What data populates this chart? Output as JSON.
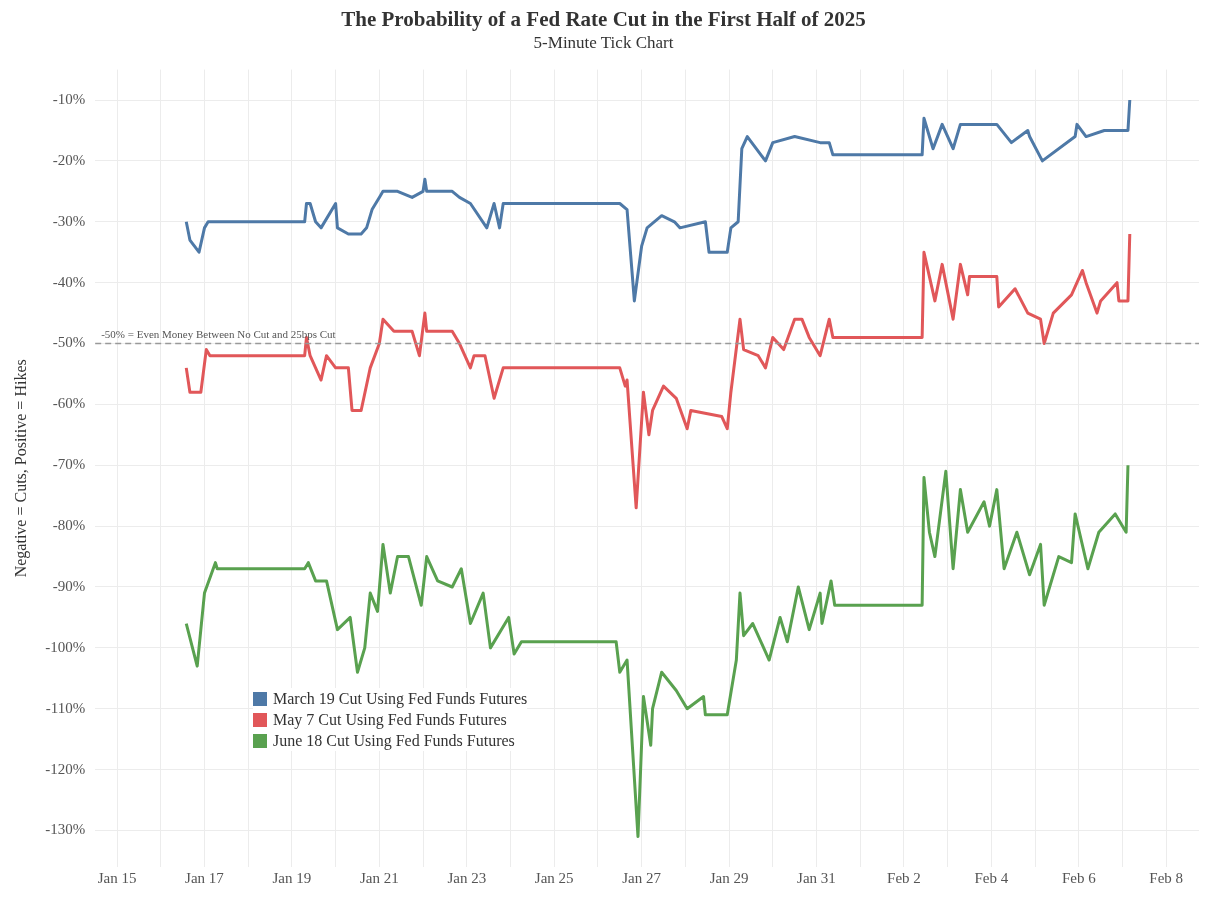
{
  "chart_data": {
    "type": "line",
    "title": "The Probability of a Fed Rate Cut in the First Half of 2025",
    "subtitle": "5-Minute Tick Chart",
    "ylabel": "Negative = Cuts, Positive = Hikes",
    "xlim": [
      "2025-01-14T12:00",
      "2025-02-08T18:00"
    ],
    "xticks": [
      {
        "value": "2025-01-15",
        "label": "Jan 15"
      },
      {
        "value": "2025-01-16",
        "label": null
      },
      {
        "value": "2025-01-17",
        "label": "Jan 17"
      },
      {
        "value": "2025-01-18",
        "label": null
      },
      {
        "value": "2025-01-19",
        "label": "Jan 19"
      },
      {
        "value": "2025-01-20",
        "label": null
      },
      {
        "value": "2025-01-21",
        "label": "Jan 21"
      },
      {
        "value": "2025-01-22",
        "label": null
      },
      {
        "value": "2025-01-23",
        "label": "Jan 23"
      },
      {
        "value": "2025-01-24",
        "label": null
      },
      {
        "value": "2025-01-25",
        "label": "Jan 25"
      },
      {
        "value": "2025-01-26",
        "label": null
      },
      {
        "value": "2025-01-27",
        "label": "Jan 27"
      },
      {
        "value": "2025-01-28",
        "label": null
      },
      {
        "value": "2025-01-29",
        "label": "Jan 29"
      },
      {
        "value": "2025-01-30",
        "label": null
      },
      {
        "value": "2025-01-31",
        "label": "Jan 31"
      },
      {
        "value": "2025-02-01",
        "label": null
      },
      {
        "value": "2025-02-02",
        "label": "Feb 2"
      },
      {
        "value": "2025-02-03",
        "label": null
      },
      {
        "value": "2025-02-04",
        "label": "Feb 4"
      },
      {
        "value": "2025-02-05",
        "label": null
      },
      {
        "value": "2025-02-06",
        "label": "Feb 6"
      },
      {
        "value": "2025-02-07",
        "label": null
      },
      {
        "value": "2025-02-08",
        "label": "Feb 8"
      }
    ],
    "ylim": [
      -136,
      -5
    ],
    "yticks": [
      {
        "value": -10,
        "label": "-10%"
      },
      {
        "value": -20,
        "label": "-20%"
      },
      {
        "value": -30,
        "label": "-30%"
      },
      {
        "value": -40,
        "label": "-40%"
      },
      {
        "value": -50,
        "label": "-50%"
      },
      {
        "value": -60,
        "label": "-60%"
      },
      {
        "value": -70,
        "label": "-70%"
      },
      {
        "value": -80,
        "label": "-80%"
      },
      {
        "value": -90,
        "label": "-90%"
      },
      {
        "value": -100,
        "label": "-100%"
      },
      {
        "value": -110,
        "label": "-110%"
      },
      {
        "value": -120,
        "label": "-120%"
      },
      {
        "value": -130,
        "label": "-130%"
      }
    ],
    "grid": true,
    "legend": "bottom left",
    "marker": "none",
    "line_style": "solid",
    "ref_lines": [
      {
        "axis": "y",
        "value": -50,
        "label": "-50% = Even Money Between No Cut and 25bps Cut",
        "color": "#999999",
        "line_style": "dashed"
      }
    ],
    "series": [
      {
        "name": "March 19 Cut Using Fed Funds Futures",
        "color": "#4e79a7",
        "x": [
          "2025-01-16T14:00",
          "2025-01-16T16:00",
          "2025-01-16T21:00",
          "2025-01-17T00:00",
          "2025-01-17T02:00",
          "2025-01-19T07:00",
          "2025-01-19T08:00",
          "2025-01-19T10:00",
          "2025-01-19T13:00",
          "2025-01-19T16:00",
          "2025-01-20T00:00",
          "2025-01-20T01:00",
          "2025-01-20T07:00",
          "2025-01-20T14:00",
          "2025-01-20T17:00",
          "2025-01-20T20:00",
          "2025-01-21T00:00",
          "2025-01-21T02:00",
          "2025-01-21T10:00",
          "2025-01-21T18:00",
          "2025-01-22T00:00",
          "2025-01-22T01:00",
          "2025-01-22T02:00",
          "2025-01-22T16:00",
          "2025-01-22T20:00",
          "2025-01-23T02:00",
          "2025-01-23T11:00",
          "2025-01-23T15:00",
          "2025-01-23T18:00",
          "2025-01-23T20:00",
          "2025-01-26T12:00",
          "2025-01-26T16:00",
          "2025-01-26T20:00",
          "2025-01-27T00:00",
          "2025-01-27T03:00",
          "2025-01-27T11:00",
          "2025-01-27T18:00",
          "2025-01-27T21:00",
          "2025-01-28T11:00",
          "2025-01-28T13:00",
          "2025-01-28T23:00",
          "2025-01-29T01:00",
          "2025-01-29T05:00",
          "2025-01-29T07:00",
          "2025-01-29T10:00",
          "2025-01-29T20:00",
          "2025-01-30T00:00",
          "2025-01-30T12:00",
          "2025-01-31T02:00",
          "2025-01-31T07:00",
          "2025-01-31T09:00",
          "2025-02-02T10:00",
          "2025-02-02T11:00",
          "2025-02-02T16:00",
          "2025-02-02T21:00",
          "2025-02-03T03:00",
          "2025-02-03T07:00",
          "2025-02-04T03:00",
          "2025-02-04T11:00",
          "2025-02-04T20:00",
          "2025-02-04T21:00",
          "2025-02-05T04:00",
          "2025-02-05T22:00",
          "2025-02-05T23:00",
          "2025-02-06T04:00",
          "2025-02-06T14:00",
          "2025-02-07T03:00",
          "2025-02-07T04:00"
        ],
        "values": [
          -30,
          -33,
          -35,
          -31,
          -30,
          -30,
          -27,
          -27,
          -30,
          -31,
          -27,
          -31,
          -32,
          -32,
          -31,
          -28,
          -26,
          -25,
          -25,
          -26,
          -25,
          -23,
          -25,
          -25,
          -26,
          -27,
          -31,
          -27,
          -31,
          -27,
          -27,
          -28,
          -43,
          -34,
          -31,
          -29,
          -30,
          -31,
          -30,
          -35,
          -35,
          -31,
          -30,
          -18,
          -16,
          -20,
          -17,
          -16,
          -17,
          -17,
          -19,
          -19,
          -13,
          -18,
          -14,
          -18,
          -14,
          -14,
          -17,
          -15,
          -16,
          -20,
          -16,
          -14,
          -16,
          -15,
          -15,
          -10
        ]
      },
      {
        "name": "May 7 Cut Using Fed Funds Futures",
        "color": "#e15759",
        "x": [
          "2025-01-16T14:00",
          "2025-01-16T16:00",
          "2025-01-16T22:00",
          "2025-01-17T01:00",
          "2025-01-17T03:00",
          "2025-01-19T07:00",
          "2025-01-19T08:00",
          "2025-01-19T10:00",
          "2025-01-19T16:00",
          "2025-01-19T19:00",
          "2025-01-20T00:00",
          "2025-01-20T07:00",
          "2025-01-20T09:00",
          "2025-01-20T14:00",
          "2025-01-20T19:00",
          "2025-01-21T00:00",
          "2025-01-21T02:00",
          "2025-01-21T08:00",
          "2025-01-21T18:00",
          "2025-01-21T22:00",
          "2025-01-22T01:00",
          "2025-01-22T02:00",
          "2025-01-22T16:00",
          "2025-01-22T20:00",
          "2025-01-23T02:00",
          "2025-01-23T04:00",
          "2025-01-23T10:00",
          "2025-01-23T15:00",
          "2025-01-23T20:00",
          "2025-01-26T12:00",
          "2025-01-26T15:00",
          "2025-01-26T16:00",
          "2025-01-26T21:00",
          "2025-01-27T01:00",
          "2025-01-27T04:00",
          "2025-01-27T06:00",
          "2025-01-27T12:00",
          "2025-01-27T19:00",
          "2025-01-28T01:00",
          "2025-01-28T03:00",
          "2025-01-28T20:00",
          "2025-01-28T23:00",
          "2025-01-29T01:00",
          "2025-01-29T06:00",
          "2025-01-29T08:00",
          "2025-01-29T16:00",
          "2025-01-29T20:00",
          "2025-01-30T00:00",
          "2025-01-30T06:00",
          "2025-01-30T12:00",
          "2025-01-30T16:00",
          "2025-01-30T20:00",
          "2025-01-31T02:00",
          "2025-01-31T07:00",
          "2025-01-31T09:00",
          "2025-02-02T10:00",
          "2025-02-02T11:00",
          "2025-02-02T14:00",
          "2025-02-02T17:00",
          "2025-02-02T21:00",
          "2025-02-03T03:00",
          "2025-02-03T07:00",
          "2025-02-03T11:00",
          "2025-02-03T12:00",
          "2025-02-04T03:00",
          "2025-02-04T04:00",
          "2025-02-04T13:00",
          "2025-02-04T20:00",
          "2025-02-05T03:00",
          "2025-02-05T05:00",
          "2025-02-05T10:00",
          "2025-02-05T20:00",
          "2025-02-06T02:00",
          "2025-02-06T04:00",
          "2025-02-06T10:00",
          "2025-02-06T12:00",
          "2025-02-06T21:00",
          "2025-02-06T22:00",
          "2025-02-07T03:00",
          "2025-02-07T04:00"
        ],
        "values": [
          -54,
          -58,
          -58,
          -51,
          -52,
          -52,
          -49,
          -52,
          -56,
          -52,
          -54,
          -54,
          -61,
          -61,
          -54,
          -50,
          -46,
          -48,
          -48,
          -52,
          -45,
          -48,
          -48,
          -50,
          -54,
          -52,
          -52,
          -59,
          -54,
          -54,
          -57,
          -56,
          -77,
          -58,
          -65,
          -61,
          -57,
          -59,
          -64,
          -61,
          -62,
          -64,
          -58,
          -46,
          -51,
          -52,
          -54,
          -49,
          -51,
          -46,
          -46,
          -49,
          -52,
          -46,
          -49,
          -49,
          -35,
          -39,
          -43,
          -37,
          -46,
          -37,
          -42,
          -39,
          -39,
          -44,
          -41,
          -45,
          -46,
          -50,
          -45,
          -42,
          -38,
          -40,
          -45,
          -43,
          -40,
          -43,
          -43,
          -32
        ]
      },
      {
        "name": "June 18 Cut Using Fed Funds Futures",
        "color": "#59a14f",
        "x": [
          "2025-01-16T14:00",
          "2025-01-16T20:00",
          "2025-01-16T22:00",
          "2025-01-17T00:00",
          "2025-01-17T06:00",
          "2025-01-17T07:00",
          "2025-01-19T07:00",
          "2025-01-19T09:00",
          "2025-01-19T13:00",
          "2025-01-19T19:00",
          "2025-01-20T01:00",
          "2025-01-20T08:00",
          "2025-01-20T12:00",
          "2025-01-20T16:00",
          "2025-01-20T19:00",
          "2025-01-20T23:00",
          "2025-01-21T02:00",
          "2025-01-21T06:00",
          "2025-01-21T10:00",
          "2025-01-21T16:00",
          "2025-01-21T23:00",
          "2025-01-22T02:00",
          "2025-01-22T08:00",
          "2025-01-22T16:00",
          "2025-01-22T21:00",
          "2025-01-23T02:00",
          "2025-01-23T09:00",
          "2025-01-23T13:00",
          "2025-01-23T23:00",
          "2025-01-24T02:00",
          "2025-01-24T06:00",
          "2025-01-26T10:00",
          "2025-01-26T12:00",
          "2025-01-26T16:00",
          "2025-01-26T22:00",
          "2025-01-27T01:00",
          "2025-01-27T05:00",
          "2025-01-27T06:00",
          "2025-01-27T11:00",
          "2025-01-27T19:00",
          "2025-01-28T01:00",
          "2025-01-28T10:00",
          "2025-01-28T11:00",
          "2025-01-28T23:00",
          "2025-01-29T04:00",
          "2025-01-29T06:00",
          "2025-01-29T08:00",
          "2025-01-29T13:00",
          "2025-01-29T22:00",
          "2025-01-30T04:00",
          "2025-01-30T08:00",
          "2025-01-30T14:00",
          "2025-01-30T20:00",
          "2025-01-31T02:00",
          "2025-01-31T03:00",
          "2025-01-31T08:00",
          "2025-01-31T10:00",
          "2025-02-02T10:00",
          "2025-02-02T11:00",
          "2025-02-02T14:00",
          "2025-02-02T17:00",
          "2025-02-02T23:00",
          "2025-02-03T03:00",
          "2025-02-03T07:00",
          "2025-02-03T11:00",
          "2025-02-03T20:00",
          "2025-02-03T23:00",
          "2025-02-04T03:00",
          "2025-02-04T07:00",
          "2025-02-04T14:00",
          "2025-02-04T21:00",
          "2025-02-05T03:00",
          "2025-02-05T05:00",
          "2025-02-05T13:00",
          "2025-02-05T20:00",
          "2025-02-05T22:00",
          "2025-02-06T05:00",
          "2025-02-06T11:00",
          "2025-02-06T20:00",
          "2025-02-07T02:00",
          "2025-02-07T03:00"
        ],
        "values": [
          -96,
          -103,
          -97,
          -91,
          -86,
          -87,
          -87,
          -86,
          -89,
          -89,
          -97,
          -95,
          -104,
          -100,
          -91,
          -94,
          -83,
          -91,
          -85,
          -85,
          -93,
          -85,
          -89,
          -90,
          -87,
          -96,
          -91,
          -100,
          -95,
          -101,
          -99,
          -99,
          -104,
          -102,
          -131,
          -108,
          -116,
          -110,
          -104,
          -107,
          -110,
          -108,
          -111,
          -111,
          -102,
          -91,
          -98,
          -96,
          -102,
          -95,
          -99,
          -90,
          -97,
          -91,
          -96,
          -89,
          -93,
          -93,
          -72,
          -81,
          -85,
          -71,
          -87,
          -74,
          -81,
          -76,
          -80,
          -74,
          -87,
          -81,
          -88,
          -83,
          -93,
          -85,
          -86,
          -78,
          -87,
          -81,
          -78,
          -81,
          -70
        ]
      }
    ]
  }
}
